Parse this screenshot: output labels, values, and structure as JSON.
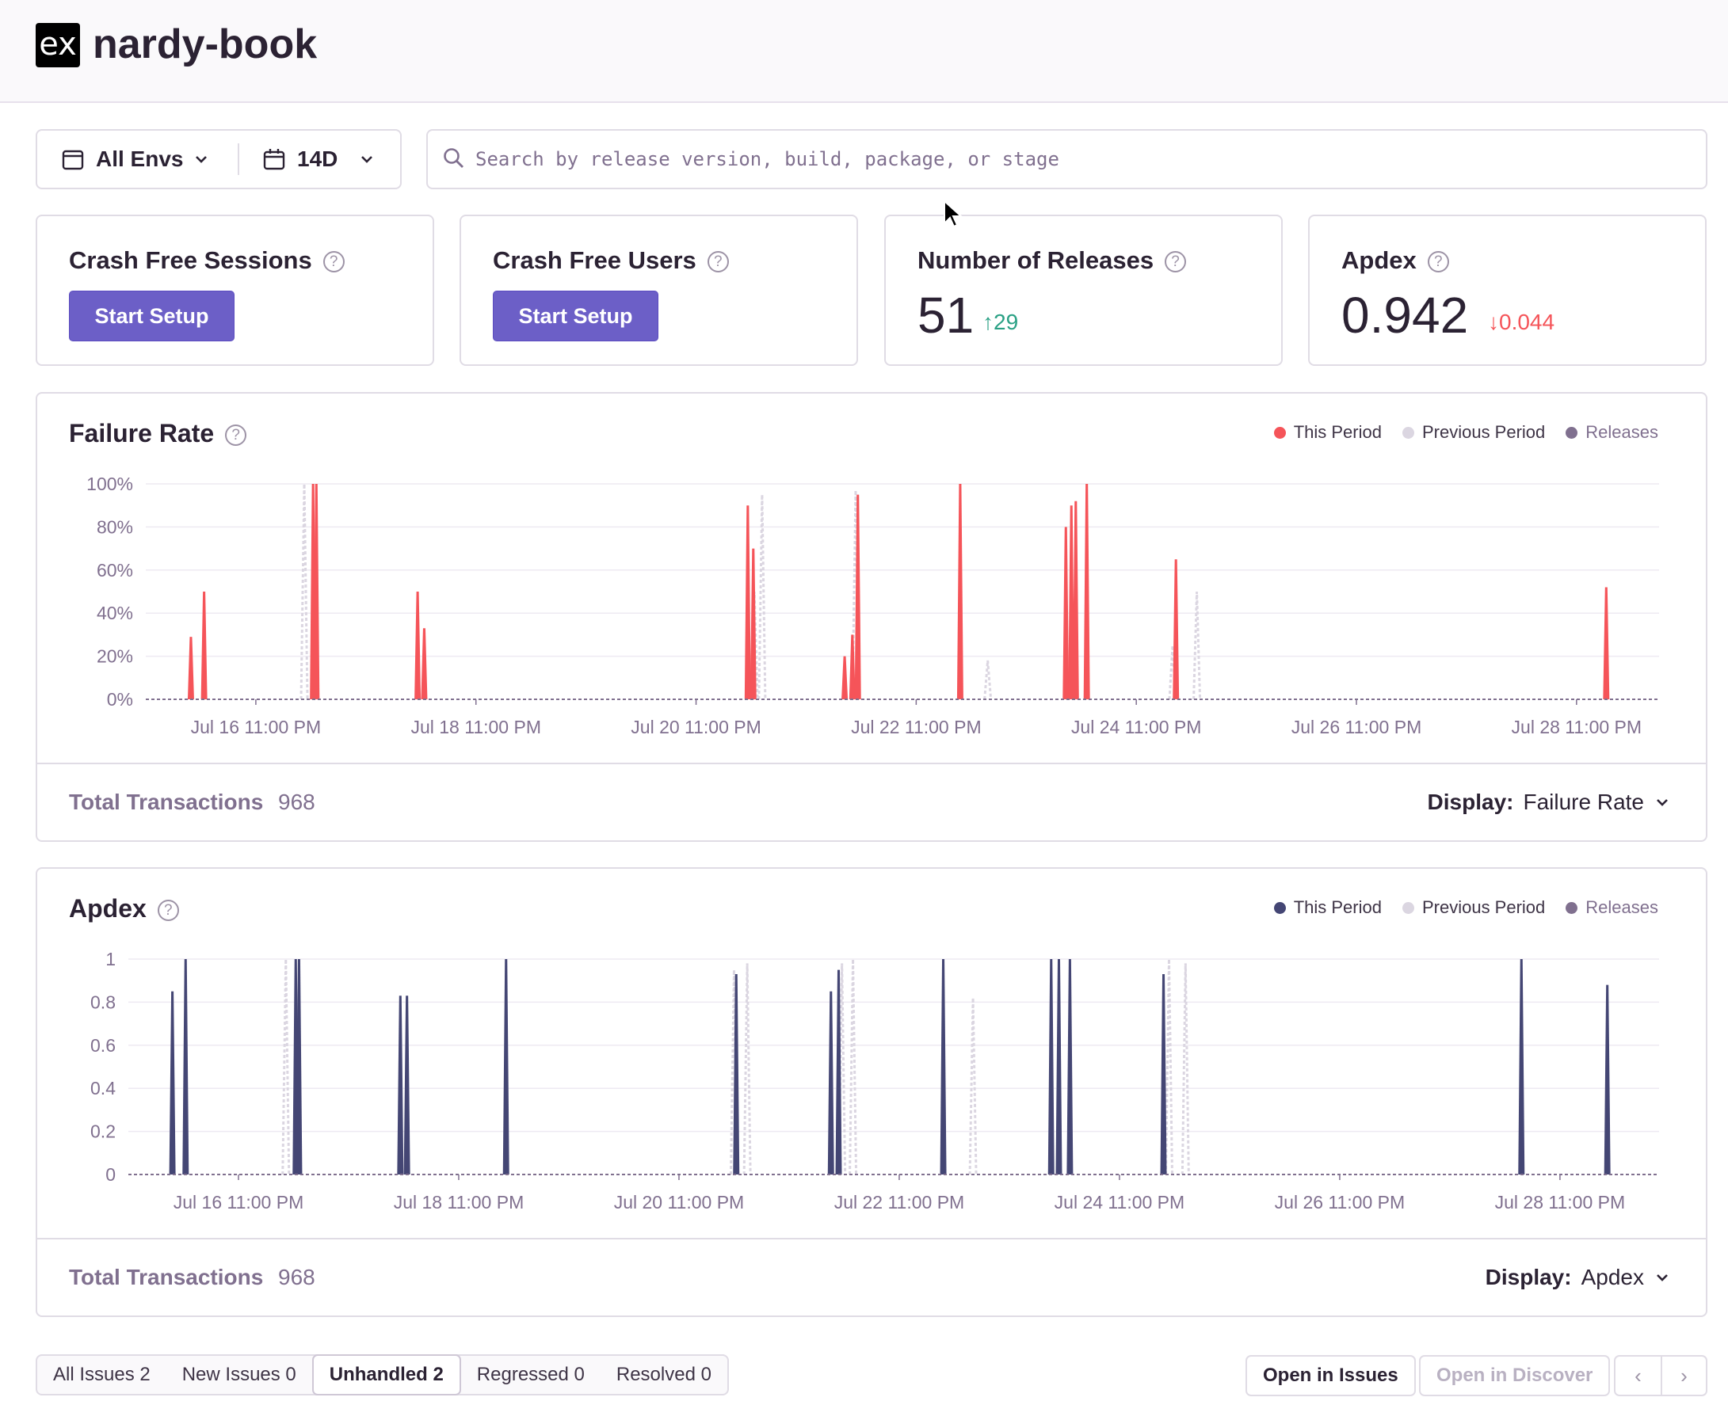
{
  "header": {
    "logo_text": "ex",
    "project_name": "nardy-book"
  },
  "filters": {
    "environment": {
      "label": "All Envs",
      "icon": "calendar-icon"
    },
    "period": {
      "label": "14D",
      "icon": "calendar-icon"
    },
    "search_placeholder": "Search by release version, build, package, or stage"
  },
  "cards": {
    "crash_free_sessions": {
      "title": "Crash Free Sessions",
      "button": "Start Setup"
    },
    "crash_free_users": {
      "title": "Crash Free Users",
      "button": "Start Setup"
    },
    "number_of_releases": {
      "title": "Number of Releases",
      "value": "51",
      "delta": "29"
    },
    "apdex": {
      "title": "Apdex",
      "value": "0.942",
      "delta": "0.044"
    }
  },
  "failure_panel": {
    "title": "Failure Rate",
    "legend": [
      "This Period",
      "Previous Period",
      "Releases"
    ],
    "footer_label": "Total Transactions",
    "footer_value": "968",
    "display_label": "Display:",
    "display_value": "Failure Rate"
  },
  "apdex_panel": {
    "title": "Apdex",
    "legend": [
      "This Period",
      "Previous Period",
      "Releases"
    ],
    "footer_label": "Total Transactions",
    "footer_value": "968",
    "display_label": "Display:",
    "display_value": "Apdex"
  },
  "colors": {
    "failure_this_period": "#f55459",
    "apdex_this_period": "#444674",
    "previous_period": "#dbd6e1",
    "releases": "#80708f",
    "accent": "#6c5fc7",
    "positive": "#2ba185",
    "negative": "#f55459"
  },
  "chart_data": [
    {
      "type": "area",
      "title": "Failure Rate",
      "x_tick_labels": [
        "Jul 16 11:00 PM",
        "Jul 18 11:00 PM",
        "Jul 20 11:00 PM",
        "Jul 22 11:00 PM",
        "Jul 24 11:00 PM",
        "Jul 26 11:00 PM",
        "Jul 28 11:00 PM"
      ],
      "y_tick_labels": [
        "0%",
        "20%",
        "40%",
        "60%",
        "80%",
        "100%"
      ],
      "ylim": [
        0,
        100
      ],
      "x_unit": "days since Jul 15 11:00 PM",
      "xlim": [
        0,
        13.75
      ],
      "series": [
        {
          "name": "This Period",
          "spikes": [
            [
              0.41,
              29
            ],
            [
              0.53,
              50
            ],
            [
              1.52,
              100
            ],
            [
              1.55,
              100
            ],
            [
              2.47,
              50
            ],
            [
              2.53,
              33
            ],
            [
              5.47,
              90
            ],
            [
              5.52,
              70
            ],
            [
              6.35,
              20
            ],
            [
              6.42,
              30
            ],
            [
              6.47,
              95
            ],
            [
              7.4,
              100
            ],
            [
              8.36,
              80
            ],
            [
              8.41,
              90
            ],
            [
              8.45,
              92
            ],
            [
              8.55,
              100
            ],
            [
              9.36,
              65
            ],
            [
              13.27,
              52
            ]
          ]
        },
        {
          "name": "Previous Period",
          "spikes": [
            [
              1.44,
              100
            ],
            [
              5.53,
              50
            ],
            [
              5.6,
              95
            ],
            [
              6.45,
              97
            ],
            [
              7.65,
              18
            ],
            [
              9.33,
              25
            ],
            [
              9.55,
              50
            ]
          ]
        }
      ]
    },
    {
      "type": "area",
      "title": "Apdex",
      "x_tick_labels": [
        "Jul 16 11:00 PM",
        "Jul 18 11:00 PM",
        "Jul 20 11:00 PM",
        "Jul 22 11:00 PM",
        "Jul 24 11:00 PM",
        "Jul 26 11:00 PM",
        "Jul 28 11:00 PM"
      ],
      "y_tick_labels": [
        "0",
        "0.2",
        "0.4",
        "0.6",
        "0.8",
        "1"
      ],
      "ylim": [
        0,
        1
      ],
      "x_unit": "days since Jul 15 11:00 PM",
      "xlim": [
        0,
        13.9
      ],
      "series": [
        {
          "name": "This Period",
          "spikes": [
            [
              0.4,
              0.85
            ],
            [
              0.52,
              1.0
            ],
            [
              1.52,
              1.0
            ],
            [
              1.55,
              1.0
            ],
            [
              2.47,
              0.83
            ],
            [
              2.53,
              0.83
            ],
            [
              3.43,
              1.0
            ],
            [
              5.52,
              0.93
            ],
            [
              6.38,
              0.85
            ],
            [
              6.45,
              0.95
            ],
            [
              7.4,
              1.0
            ],
            [
              8.38,
              1.0
            ],
            [
              8.45,
              1.0
            ],
            [
              8.55,
              1.0
            ],
            [
              9.4,
              0.93
            ],
            [
              12.65,
              1.0
            ],
            [
              13.43,
              0.88
            ]
          ]
        },
        {
          "name": "Previous Period",
          "spikes": [
            [
              1.43,
              1.0
            ],
            [
              5.5,
              0.95
            ],
            [
              5.62,
              0.98
            ],
            [
              6.48,
              0.98
            ],
            [
              6.58,
              1.0
            ],
            [
              7.67,
              0.82
            ],
            [
              9.45,
              1.0
            ],
            [
              9.6,
              0.98
            ]
          ]
        }
      ]
    }
  ],
  "issues_bar": {
    "tabs": [
      {
        "label": "All Issues 2"
      },
      {
        "label": "New Issues 0"
      },
      {
        "label": "Unhandled 2"
      },
      {
        "label": "Regressed 0"
      },
      {
        "label": "Resolved 0"
      }
    ],
    "open_in_issues": "Open in Issues",
    "open_in_discover": "Open in Discover"
  }
}
